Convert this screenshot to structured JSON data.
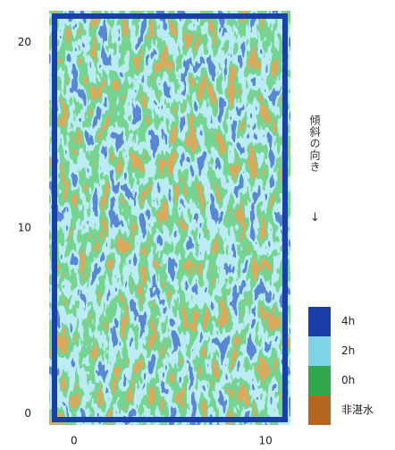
{
  "chart_data": {
    "type": "heatmap",
    "xlim": [
      -1.3,
      11.3
    ],
    "xticks": [
      0,
      10
    ],
    "ylim": [
      -0.6,
      21.7
    ],
    "yticks": [
      0,
      10,
      20
    ],
    "annotation": "傾斜の向き",
    "arrow": "↓",
    "series": [
      {
        "name": "4h",
        "color": "#1a3fa8"
      },
      {
        "name": "2h",
        "color": "#7fd3e6"
      },
      {
        "name": "0h",
        "color": "#2ea84a"
      },
      {
        "name": "非湛水",
        "color": "#b5651d"
      }
    ]
  }
}
